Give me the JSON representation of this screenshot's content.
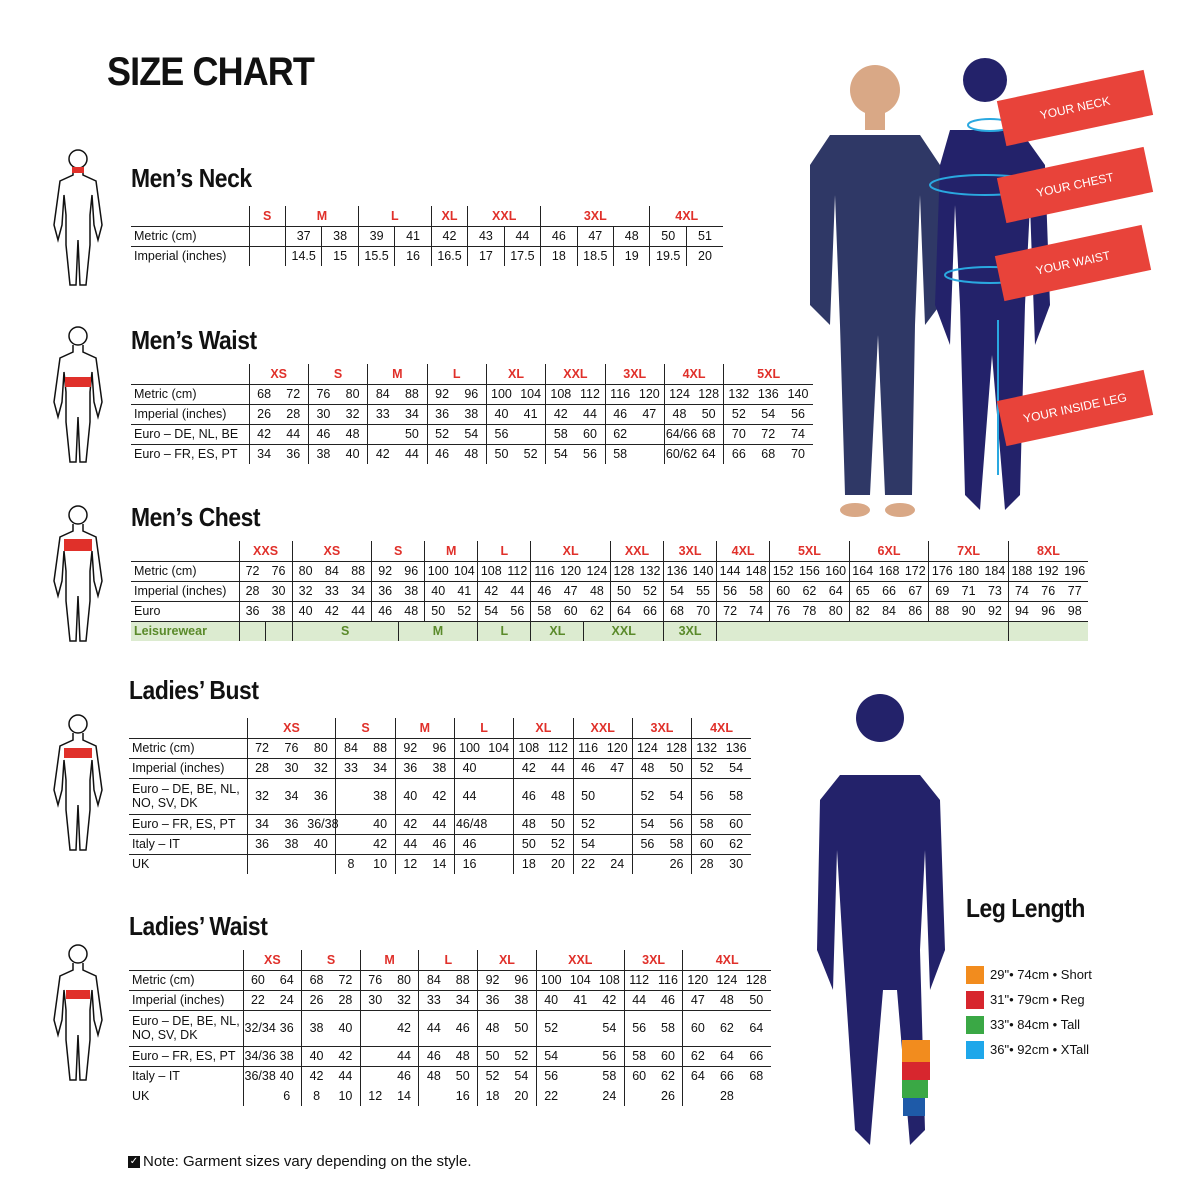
{
  "title": "SIZE CHART",
  "note": "Note: Garment sizes vary depending on the style.",
  "callouts": [
    "YOUR NECK",
    "YOUR CHEST",
    "YOUR WAIST",
    "YOUR INSIDE LEG"
  ],
  "colors": {
    "size_label": "#e0302a",
    "callout": "#e8433a",
    "silhouette": "#23226a",
    "measure": "#2aa8e0",
    "leisurewear_bg": "#dcebd0",
    "leisurewear_text": "#5a8a2a"
  },
  "leg_length": {
    "title": "Leg Length",
    "items": [
      {
        "label": "29\"• 74cm • Short",
        "color": "#f28c1e"
      },
      {
        "label": "31\"• 79cm • Reg",
        "color": "#d7262e"
      },
      {
        "label": "33\"• 84cm • Tall",
        "color": "#3aa845"
      },
      {
        "label": "36\"• 92cm • XTall",
        "color": "#1ea7ea"
      }
    ]
  },
  "tables": [
    {
      "title": "Men’s Neck",
      "sizes": [
        {
          "label": "S",
          "span": 1
        },
        {
          "label": "M",
          "span": 2
        },
        {
          "label": "L",
          "span": 2
        },
        {
          "label": "XL",
          "span": 1
        },
        {
          "label": "XXL",
          "span": 2
        },
        {
          "label": "3XL",
          "span": 3
        },
        {
          "label": "4XL",
          "span": 2
        }
      ],
      "rows": [
        {
          "label": "Metric (cm)",
          "cells": [
            "",
            "37",
            "38",
            "39",
            "41",
            "42",
            "43",
            "44",
            "46",
            "47",
            "48",
            "50",
            "51"
          ]
        },
        {
          "label": "Imperial (inches)",
          "cells": [
            "",
            "14.5",
            "15",
            "15.5",
            "16",
            "16.5",
            "17",
            "17.5",
            "18",
            "18.5",
            "19",
            "19.5",
            "20"
          ]
        }
      ]
    },
    {
      "title": "Men’s Waist",
      "sizes": [
        {
          "label": "XS",
          "span": 2
        },
        {
          "label": "S",
          "span": 2
        },
        {
          "label": "M",
          "span": 2
        },
        {
          "label": "L",
          "span": 2
        },
        {
          "label": "XL",
          "span": 2
        },
        {
          "label": "XXL",
          "span": 2
        },
        {
          "label": "3XL",
          "span": 2
        },
        {
          "label": "4XL",
          "span": 2
        },
        {
          "label": "5XL",
          "span": 3
        }
      ],
      "rows": [
        {
          "label": "Metric (cm)",
          "cells": [
            "68",
            "72",
            "76",
            "80",
            "84",
            "88",
            "92",
            "96",
            "100",
            "104",
            "108",
            "112",
            "116",
            "120",
            "124",
            "128",
            "132",
            "136",
            "140"
          ]
        },
        {
          "label": "Imperial (inches)",
          "cells": [
            "26",
            "28",
            "30",
            "32",
            "33",
            "34",
            "36",
            "38",
            "40",
            "41",
            "42",
            "44",
            "46",
            "47",
            "48",
            "50",
            "52",
            "54",
            "56"
          ]
        },
        {
          "label": "Euro – DE, NL, BE",
          "cells": [
            "42",
            "44",
            "46",
            "48",
            "",
            "50",
            "52",
            "54",
            "56",
            "",
            "58",
            "60",
            "62",
            "",
            "64/66",
            "68",
            "70",
            "72",
            "74"
          ]
        },
        {
          "label": "Euro – FR, ES, PT",
          "cells": [
            "34",
            "36",
            "38",
            "40",
            "42",
            "44",
            "46",
            "48",
            "50",
            "52",
            "54",
            "56",
            "58",
            "",
            "60/62",
            "64",
            "66",
            "68",
            "70"
          ]
        }
      ]
    },
    {
      "title": "Men’s Chest",
      "sizes": [
        {
          "label": "XXS",
          "span": 2
        },
        {
          "label": "XS",
          "span": 3
        },
        {
          "label": "S",
          "span": 2
        },
        {
          "label": "M",
          "span": 2
        },
        {
          "label": "L",
          "span": 2
        },
        {
          "label": "XL",
          "span": 3
        },
        {
          "label": "XXL",
          "span": 2
        },
        {
          "label": "3XL",
          "span": 2
        },
        {
          "label": "4XL",
          "span": 2
        },
        {
          "label": "5XL",
          "span": 3
        },
        {
          "label": "6XL",
          "span": 3
        },
        {
          "label": "7XL",
          "span": 3
        },
        {
          "label": "8XL",
          "span": 3
        }
      ],
      "rows": [
        {
          "label": "Metric (cm)",
          "cells": [
            "72",
            "76",
            "80",
            "84",
            "88",
            "92",
            "96",
            "100",
            "104",
            "108",
            "112",
            "116",
            "120",
            "124",
            "128",
            "132",
            "136",
            "140",
            "144",
            "148",
            "152",
            "156",
            "160",
            "164",
            "168",
            "172",
            "176",
            "180",
            "184",
            "188",
            "192",
            "196"
          ]
        },
        {
          "label": "Imperial (inches)",
          "cells": [
            "28",
            "30",
            "32",
            "33",
            "34",
            "36",
            "38",
            "40",
            "41",
            "42",
            "44",
            "46",
            "47",
            "48",
            "50",
            "52",
            "54",
            "55",
            "56",
            "58",
            "60",
            "62",
            "64",
            "65",
            "66",
            "67",
            "69",
            "71",
            "73",
            "74",
            "76",
            "77"
          ]
        },
        {
          "label": "Euro",
          "cells": [
            "36",
            "38",
            "40",
            "42",
            "44",
            "46",
            "48",
            "50",
            "52",
            "54",
            "56",
            "58",
            "60",
            "62",
            "64",
            "66",
            "68",
            "70",
            "72",
            "74",
            "76",
            "78",
            "80",
            "82",
            "84",
            "86",
            "88",
            "90",
            "92",
            "94",
            "96",
            "98"
          ]
        }
      ],
      "leisurewear": {
        "label": "Leisurewear",
        "cells": [
          {
            "v": "",
            "span": 1
          },
          {
            "v": "",
            "span": 1
          },
          {
            "v": "S",
            "span": 4
          },
          {
            "v": "M",
            "span": 3
          },
          {
            "v": "L",
            "span": 2
          },
          {
            "v": "XL",
            "span": 2
          },
          {
            "v": "XXL",
            "span": 3
          },
          {
            "v": "3XL",
            "span": 2
          },
          {
            "v": "",
            "span": 11
          },
          {
            "v": "",
            "span": 3
          }
        ]
      }
    },
    {
      "title": "Ladies’ Bust",
      "sizes": [
        {
          "label": "XS",
          "span": 3
        },
        {
          "label": "S",
          "span": 2
        },
        {
          "label": "M",
          "span": 2
        },
        {
          "label": "L",
          "span": 2
        },
        {
          "label": "XL",
          "span": 2
        },
        {
          "label": "XXL",
          "span": 2
        },
        {
          "label": "3XL",
          "span": 2
        },
        {
          "label": "4XL",
          "span": 2
        }
      ],
      "rows": [
        {
          "label": "Metric (cm)",
          "cells": [
            "72",
            "76",
            "80",
            "84",
            "88",
            "92",
            "96",
            "100",
            "104",
            "108",
            "112",
            "116",
            "120",
            "124",
            "128",
            "132",
            "136"
          ]
        },
        {
          "label": "Imperial (inches)",
          "cells": [
            "28",
            "30",
            "32",
            "33",
            "34",
            "36",
            "38",
            "40",
            "",
            "42",
            "44",
            "46",
            "47",
            "48",
            "50",
            "52",
            "54"
          ]
        },
        {
          "label": "Euro –  DE, BE, NL, NO, SV, DK",
          "tall": true,
          "cells": [
            "32",
            "34",
            "36",
            "",
            "38",
            "40",
            "42",
            "44",
            "",
            "46",
            "48",
            "50",
            "",
            "52",
            "54",
            "56",
            "58"
          ]
        },
        {
          "label": "Euro – FR, ES, PT",
          "cells": [
            "34",
            "36",
            "36/38",
            "",
            "40",
            "42",
            "44",
            "46/48",
            "",
            "48",
            "50",
            "52",
            "",
            "54",
            "56",
            "58",
            "60"
          ]
        },
        {
          "label": "Italy – IT",
          "cells": [
            "36",
            "38",
            "40",
            "",
            "42",
            "44",
            "46",
            "46",
            "",
            "50",
            "52",
            "54",
            "",
            "56",
            "58",
            "60",
            "62"
          ]
        },
        {
          "label": "UK",
          "cells": [
            "",
            "",
            "",
            "8",
            "10",
            "12",
            "14",
            "16",
            "",
            "18",
            "20",
            "22",
            "24",
            "",
            "26",
            "28",
            "30"
          ]
        }
      ]
    },
    {
      "title": "Ladies’ Waist",
      "sizes": [
        {
          "label": "XS",
          "span": 2
        },
        {
          "label": "S",
          "span": 2
        },
        {
          "label": "M",
          "span": 2
        },
        {
          "label": "L",
          "span": 2
        },
        {
          "label": "XL",
          "span": 2
        },
        {
          "label": "XXL",
          "span": 3
        },
        {
          "label": "3XL",
          "span": 2
        },
        {
          "label": "4XL",
          "span": 3
        }
      ],
      "rows": [
        {
          "label": "Metric (cm)",
          "cells": [
            "60",
            "64",
            "68",
            "72",
            "76",
            "80",
            "84",
            "88",
            "92",
            "96",
            "100",
            "104",
            "108",
            "112",
            "116",
            "120",
            "124",
            "128"
          ]
        },
        {
          "label": "Imperial (inches)",
          "cells": [
            "22",
            "24",
            "26",
            "28",
            "30",
            "32",
            "33",
            "34",
            "36",
            "38",
            "40",
            "41",
            "42",
            "44",
            "46",
            "47",
            "48",
            "50"
          ]
        },
        {
          "label": "Euro – DE, BE, NL, NO, SV, DK",
          "tall": true,
          "cells": [
            "32/34",
            "36",
            "38",
            "40",
            "",
            "42",
            "44",
            "46",
            "48",
            "50",
            "52",
            "",
            "54",
            "56",
            "58",
            "60",
            "62",
            "64"
          ]
        },
        {
          "label": "Euro – FR, ES, PT",
          "cells": [
            "34/36",
            "38",
            "40",
            "42",
            "",
            "44",
            "46",
            "48",
            "50",
            "52",
            "54",
            "",
            "56",
            "58",
            "60",
            "62",
            "64",
            "66"
          ]
        },
        {
          "label": "Italy – IT",
          "cells": [
            "36/38",
            "40",
            "42",
            "44",
            "",
            "46",
            "48",
            "50",
            "52",
            "54",
            "56",
            "",
            "58",
            "60",
            "62",
            "64",
            "66",
            "68"
          ]
        },
        {
          "label": "UK",
          "nob": true,
          "cells": [
            "",
            "6",
            "8",
            "10",
            "12",
            "14",
            "",
            "16",
            "18",
            "20",
            "22",
            "",
            "24",
            "",
            "26",
            "",
            "28",
            ""
          ]
        }
      ]
    }
  ]
}
